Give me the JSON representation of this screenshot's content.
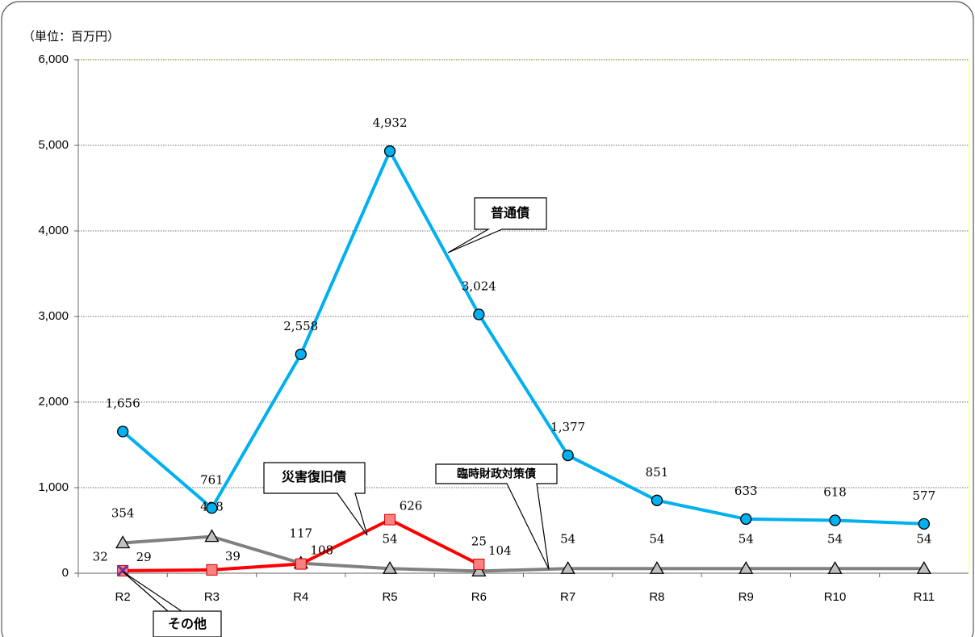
{
  "chart_data": {
    "type": "line",
    "unit_label": "（単位：百万円）",
    "categories": [
      "R2",
      "R3",
      "R4",
      "R5",
      "R6",
      "R7",
      "R8",
      "R9",
      "R10",
      "R11"
    ],
    "ylim": [
      0,
      6000
    ],
    "yticks": [
      0,
      {
        "value": 1000,
        "label": "1,000"
      },
      {
        "value": 2000,
        "label": "2,000"
      },
      {
        "value": 3000,
        "label": "3,000"
      },
      {
        "value": 4000,
        "label": "4,000"
      },
      {
        "value": 5000,
        "label": "5,000"
      },
      {
        "value": 6000,
        "label": "6,000"
      }
    ],
    "grid": true,
    "series": [
      {
        "name": "普通債",
        "color": "#00b0f0",
        "marker": "circle",
        "marker_color": "#00b0f0",
        "values": [
          1656,
          761,
          2558,
          4932,
          3024,
          1377,
          851,
          633,
          618,
          577
        ],
        "value_labels": [
          "1,656",
          "761",
          "2,558",
          "4,932",
          "3,024",
          "1,377",
          "851",
          "633",
          "618",
          "577"
        ]
      },
      {
        "name": "災害復旧債",
        "color": "#ff0000",
        "marker": "square",
        "marker_color": "#ff8080",
        "values": [
          29,
          39,
          108,
          626,
          104,
          null,
          null,
          null,
          null,
          null
        ],
        "value_labels": [
          "29",
          "39",
          "108",
          "626",
          "104",
          null,
          null,
          null,
          null,
          null
        ]
      },
      {
        "name": "臨時財政対策債",
        "color": "#808080",
        "marker": "triangle",
        "marker_color": "#c0c0c0",
        "values": [
          354,
          428,
          117,
          54,
          25,
          54,
          54,
          54,
          54,
          54
        ],
        "value_labels": [
          "354",
          "428",
          "117",
          "54",
          "25",
          "54",
          "54",
          "54",
          "54",
          "54"
        ]
      },
      {
        "name": "その他",
        "color": "#7030a0",
        "marker": "x",
        "marker_color": "#7030a0",
        "values": [
          32,
          null,
          null,
          null,
          null,
          null,
          null,
          null,
          null,
          null
        ],
        "value_labels": [
          "32",
          null,
          null,
          null,
          null,
          null,
          null,
          null,
          null,
          null
        ]
      }
    ]
  }
}
